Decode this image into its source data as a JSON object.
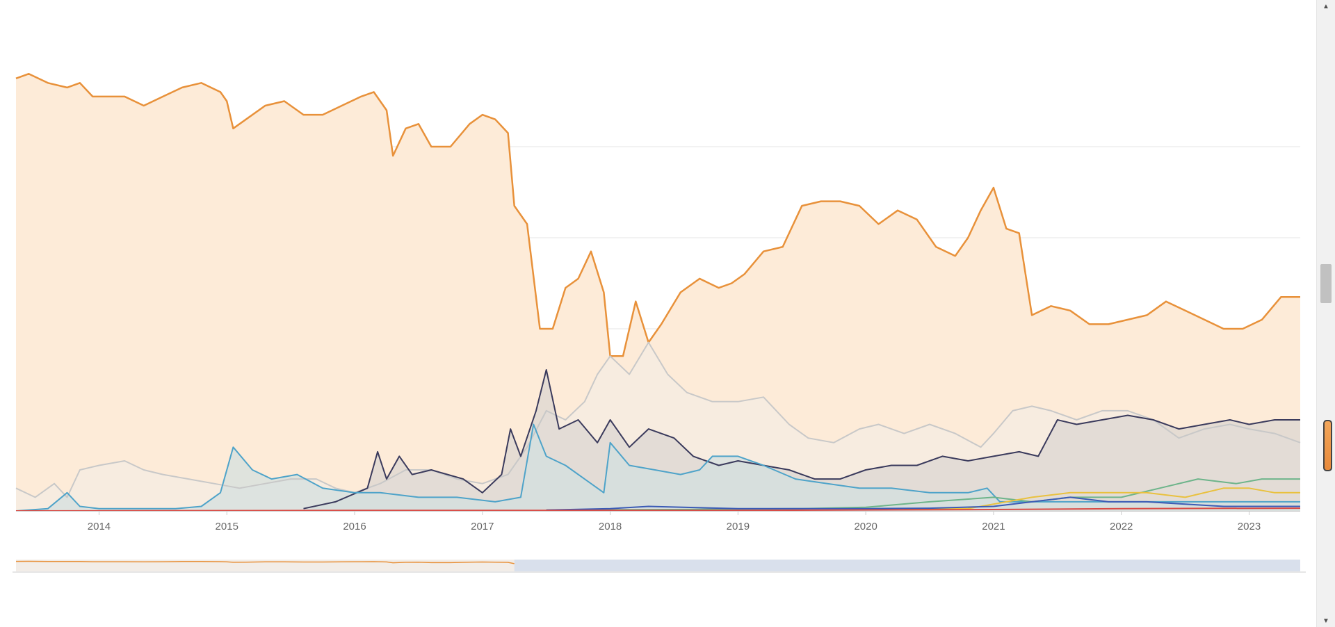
{
  "chart_data": {
    "type": "area",
    "title": "",
    "xlabel": "",
    "ylabel": "",
    "x_ticks": [
      "2014",
      "2015",
      "2016",
      "2017",
      "2018",
      "2019",
      "2020",
      "2021",
      "2022",
      "2023"
    ],
    "x_range": [
      2013.35,
      2023.4
    ],
    "y_range": [
      0,
      100
    ],
    "grid": "horizontal",
    "legend": "none",
    "series": [
      {
        "color": "#e8913a",
        "fill": "#fdebd8",
        "points": [
          [
            2013.35,
            95
          ],
          [
            2013.45,
            96
          ],
          [
            2013.6,
            94
          ],
          [
            2013.75,
            93
          ],
          [
            2013.85,
            94
          ],
          [
            2013.95,
            91
          ],
          [
            2014.1,
            91
          ],
          [
            2014.2,
            91
          ],
          [
            2014.35,
            89
          ],
          [
            2014.5,
            91
          ],
          [
            2014.65,
            93
          ],
          [
            2014.8,
            94
          ],
          [
            2014.95,
            92
          ],
          [
            2015.0,
            90
          ],
          [
            2015.05,
            84
          ],
          [
            2015.15,
            86
          ],
          [
            2015.3,
            89
          ],
          [
            2015.45,
            90
          ],
          [
            2015.6,
            87
          ],
          [
            2015.75,
            87
          ],
          [
            2015.9,
            89
          ],
          [
            2016.05,
            91
          ],
          [
            2016.15,
            92
          ],
          [
            2016.25,
            88
          ],
          [
            2016.3,
            78
          ],
          [
            2016.4,
            84
          ],
          [
            2016.5,
            85
          ],
          [
            2016.6,
            80
          ],
          [
            2016.75,
            80
          ],
          [
            2016.9,
            85
          ],
          [
            2017.0,
            87
          ],
          [
            2017.1,
            86
          ],
          [
            2017.2,
            83
          ],
          [
            2017.25,
            67
          ],
          [
            2017.35,
            63
          ],
          [
            2017.45,
            40
          ],
          [
            2017.55,
            40
          ],
          [
            2017.65,
            49
          ],
          [
            2017.75,
            51
          ],
          [
            2017.85,
            57
          ],
          [
            2017.95,
            48
          ],
          [
            2018.0,
            34
          ],
          [
            2018.1,
            34
          ],
          [
            2018.2,
            46
          ],
          [
            2018.3,
            37
          ],
          [
            2018.4,
            41
          ],
          [
            2018.55,
            48
          ],
          [
            2018.7,
            51
          ],
          [
            2018.85,
            49
          ],
          [
            2018.95,
            50
          ],
          [
            2019.05,
            52
          ],
          [
            2019.2,
            57
          ],
          [
            2019.35,
            58
          ],
          [
            2019.5,
            67
          ],
          [
            2019.65,
            68
          ],
          [
            2019.8,
            68
          ],
          [
            2019.95,
            67
          ],
          [
            2020.1,
            63
          ],
          [
            2020.25,
            66
          ],
          [
            2020.4,
            64
          ],
          [
            2020.55,
            58
          ],
          [
            2020.7,
            56
          ],
          [
            2020.8,
            60
          ],
          [
            2020.9,
            66
          ],
          [
            2021.0,
            71
          ],
          [
            2021.1,
            62
          ],
          [
            2021.2,
            61
          ],
          [
            2021.3,
            43
          ],
          [
            2021.45,
            45
          ],
          [
            2021.6,
            44
          ],
          [
            2021.75,
            41
          ],
          [
            2021.9,
            41
          ],
          [
            2022.05,
            42
          ],
          [
            2022.2,
            43
          ],
          [
            2022.35,
            46
          ],
          [
            2022.5,
            44
          ],
          [
            2022.65,
            42
          ],
          [
            2022.8,
            40
          ],
          [
            2022.95,
            40
          ],
          [
            2023.1,
            42
          ],
          [
            2023.25,
            47
          ],
          [
            2023.4,
            47
          ]
        ]
      },
      {
        "color": "#c8c8c8",
        "fill": "#f3ece4",
        "points": [
          [
            2013.35,
            5
          ],
          [
            2013.5,
            3
          ],
          [
            2013.65,
            6
          ],
          [
            2013.75,
            3
          ],
          [
            2013.85,
            9
          ],
          [
            2014.0,
            10
          ],
          [
            2014.2,
            11
          ],
          [
            2014.35,
            9
          ],
          [
            2014.5,
            8
          ],
          [
            2014.7,
            7
          ],
          [
            2014.9,
            6
          ],
          [
            2015.1,
            5
          ],
          [
            2015.3,
            6
          ],
          [
            2015.5,
            7
          ],
          [
            2015.7,
            7
          ],
          [
            2015.85,
            5
          ],
          [
            2016.0,
            4
          ],
          [
            2016.2,
            6
          ],
          [
            2016.4,
            9
          ],
          [
            2016.6,
            9
          ],
          [
            2016.8,
            7
          ],
          [
            2017.0,
            6
          ],
          [
            2017.2,
            8
          ],
          [
            2017.35,
            14
          ],
          [
            2017.5,
            22
          ],
          [
            2017.65,
            20
          ],
          [
            2017.8,
            24
          ],
          [
            2017.9,
            30
          ],
          [
            2018.0,
            34
          ],
          [
            2018.15,
            30
          ],
          [
            2018.3,
            37
          ],
          [
            2018.45,
            30
          ],
          [
            2018.6,
            26
          ],
          [
            2018.8,
            24
          ],
          [
            2019.0,
            24
          ],
          [
            2019.2,
            25
          ],
          [
            2019.4,
            19
          ],
          [
            2019.55,
            16
          ],
          [
            2019.75,
            15
          ],
          [
            2019.95,
            18
          ],
          [
            2020.1,
            19
          ],
          [
            2020.3,
            17
          ],
          [
            2020.5,
            19
          ],
          [
            2020.7,
            17
          ],
          [
            2020.9,
            14
          ],
          [
            2021.0,
            17
          ],
          [
            2021.15,
            22
          ],
          [
            2021.3,
            23
          ],
          [
            2021.45,
            22
          ],
          [
            2021.65,
            20
          ],
          [
            2021.85,
            22
          ],
          [
            2022.05,
            22
          ],
          [
            2022.25,
            20
          ],
          [
            2022.45,
            16
          ],
          [
            2022.65,
            18
          ],
          [
            2022.85,
            19
          ],
          [
            2023.0,
            18
          ],
          [
            2023.2,
            17
          ],
          [
            2023.4,
            15
          ]
        ]
      },
      {
        "color": "#3a3a5c",
        "fill": "#dad6d2",
        "points": [
          [
            2015.6,
            0.5
          ],
          [
            2015.85,
            2
          ],
          [
            2016.1,
            5
          ],
          [
            2016.18,
            13
          ],
          [
            2016.25,
            7
          ],
          [
            2016.35,
            12
          ],
          [
            2016.45,
            8
          ],
          [
            2016.6,
            9
          ],
          [
            2016.85,
            7
          ],
          [
            2017.0,
            4
          ],
          [
            2017.15,
            8
          ],
          [
            2017.22,
            18
          ],
          [
            2017.3,
            12
          ],
          [
            2017.42,
            22
          ],
          [
            2017.5,
            31
          ],
          [
            2017.6,
            18
          ],
          [
            2017.75,
            20
          ],
          [
            2017.9,
            15
          ],
          [
            2018.0,
            20
          ],
          [
            2018.05,
            18
          ],
          [
            2018.15,
            14
          ],
          [
            2018.3,
            18
          ],
          [
            2018.5,
            16
          ],
          [
            2018.65,
            12
          ],
          [
            2018.85,
            10
          ],
          [
            2019.0,
            11
          ],
          [
            2019.2,
            10
          ],
          [
            2019.4,
            9
          ],
          [
            2019.6,
            7
          ],
          [
            2019.8,
            7
          ],
          [
            2020.0,
            9
          ],
          [
            2020.2,
            10
          ],
          [
            2020.4,
            10
          ],
          [
            2020.6,
            12
          ],
          [
            2020.8,
            11
          ],
          [
            2021.0,
            12
          ],
          [
            2021.2,
            13
          ],
          [
            2021.35,
            12
          ],
          [
            2021.5,
            20
          ],
          [
            2021.65,
            19
          ],
          [
            2021.85,
            20
          ],
          [
            2022.05,
            21
          ],
          [
            2022.25,
            20
          ],
          [
            2022.45,
            18
          ],
          [
            2022.65,
            19
          ],
          [
            2022.85,
            20
          ],
          [
            2023.0,
            19
          ],
          [
            2023.2,
            20
          ],
          [
            2023.4,
            20
          ]
        ]
      },
      {
        "color": "#4ea3c9",
        "fill": "#d2dfdf",
        "points": [
          [
            2013.35,
            0
          ],
          [
            2013.6,
            0.5
          ],
          [
            2013.75,
            4
          ],
          [
            2013.85,
            1
          ],
          [
            2014.0,
            0.5
          ],
          [
            2014.3,
            0.5
          ],
          [
            2014.6,
            0.5
          ],
          [
            2014.8,
            1
          ],
          [
            2014.95,
            4
          ],
          [
            2015.05,
            14
          ],
          [
            2015.2,
            9
          ],
          [
            2015.35,
            7
          ],
          [
            2015.55,
            8
          ],
          [
            2015.75,
            5
          ],
          [
            2016.0,
            4
          ],
          [
            2016.2,
            4
          ],
          [
            2016.5,
            3
          ],
          [
            2016.8,
            3
          ],
          [
            2017.1,
            2
          ],
          [
            2017.3,
            3
          ],
          [
            2017.4,
            19
          ],
          [
            2017.5,
            12
          ],
          [
            2017.65,
            10
          ],
          [
            2017.85,
            6
          ],
          [
            2017.95,
            4
          ],
          [
            2018.0,
            15
          ],
          [
            2018.15,
            10
          ],
          [
            2018.35,
            9
          ],
          [
            2018.55,
            8
          ],
          [
            2018.7,
            9
          ],
          [
            2018.8,
            12
          ],
          [
            2019.0,
            12
          ],
          [
            2019.2,
            10
          ],
          [
            2019.45,
            7
          ],
          [
            2019.7,
            6
          ],
          [
            2019.95,
            5
          ],
          [
            2020.2,
            5
          ],
          [
            2020.5,
            4
          ],
          [
            2020.8,
            4
          ],
          [
            2020.95,
            5
          ],
          [
            2021.05,
            2
          ],
          [
            2021.3,
            2
          ],
          [
            2021.6,
            2
          ],
          [
            2021.9,
            2
          ],
          [
            2022.2,
            2
          ],
          [
            2022.5,
            2
          ],
          [
            2022.8,
            2
          ],
          [
            2023.1,
            2
          ],
          [
            2023.4,
            2
          ]
        ]
      },
      {
        "color": "#6db48a",
        "fill": "none",
        "points": [
          [
            2017.5,
            0.2
          ],
          [
            2018.5,
            0.3
          ],
          [
            2019.5,
            0.5
          ],
          [
            2020.0,
            0.8
          ],
          [
            2020.5,
            2
          ],
          [
            2021.0,
            3
          ],
          [
            2021.3,
            2
          ],
          [
            2021.6,
            3
          ],
          [
            2022.0,
            3
          ],
          [
            2022.3,
            5
          ],
          [
            2022.6,
            7
          ],
          [
            2022.9,
            6
          ],
          [
            2023.1,
            7
          ],
          [
            2023.4,
            7
          ]
        ]
      },
      {
        "color": "#e9c13e",
        "fill": "none",
        "points": [
          [
            2020.3,
            0.3
          ],
          [
            2020.8,
            0.5
          ],
          [
            2021.3,
            3
          ],
          [
            2021.6,
            4
          ],
          [
            2021.9,
            4
          ],
          [
            2022.2,
            4
          ],
          [
            2022.5,
            3
          ],
          [
            2022.8,
            5
          ],
          [
            2023.0,
            5
          ],
          [
            2023.2,
            4
          ],
          [
            2023.4,
            4
          ]
        ]
      },
      {
        "color": "#3b5bb5",
        "fill": "none",
        "points": [
          [
            2017.5,
            0.2
          ],
          [
            2018.0,
            0.5
          ],
          [
            2018.3,
            1
          ],
          [
            2019.0,
            0.5
          ],
          [
            2019.5,
            0.5
          ],
          [
            2020.0,
            0.5
          ],
          [
            2020.5,
            0.6
          ],
          [
            2021.0,
            1
          ],
          [
            2021.3,
            2
          ],
          [
            2021.6,
            3
          ],
          [
            2021.9,
            2
          ],
          [
            2022.2,
            2
          ],
          [
            2022.5,
            1.5
          ],
          [
            2022.8,
            1
          ],
          [
            2023.1,
            1
          ],
          [
            2023.4,
            1
          ]
        ]
      },
      {
        "color": "#d94b45",
        "fill": "none",
        "points": [
          [
            2013.35,
            0
          ],
          [
            2016.0,
            0.1
          ],
          [
            2019.0,
            0.1
          ],
          [
            2021.0,
            0.3
          ],
          [
            2022.0,
            0.5
          ],
          [
            2023.4,
            0.6
          ]
        ]
      }
    ],
    "navigator": {
      "range_start": 2013.35,
      "range_end": 2017.25,
      "color": "#e8913a",
      "background": "#d9e0ec"
    }
  }
}
